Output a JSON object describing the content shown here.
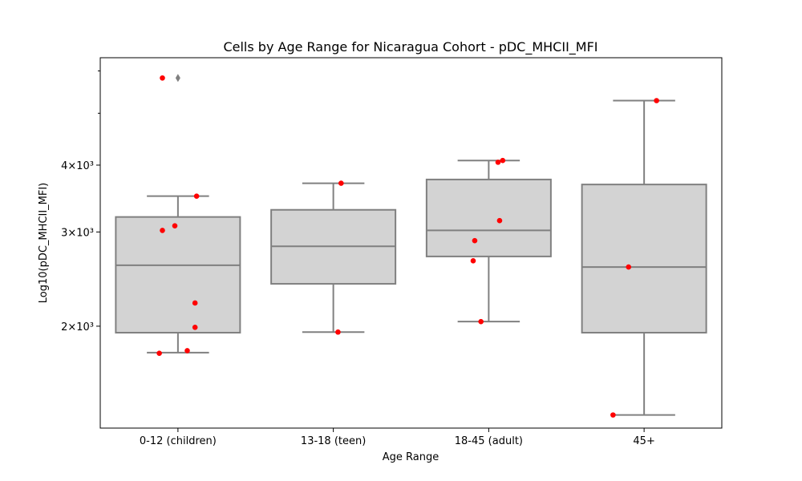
{
  "chart_data": {
    "type": "box",
    "title": "Cells by Age Range for Nicaragua Cohort - pDC_MHCII_MFI",
    "xlabel": "Age Range",
    "ylabel": "Log10(pDC_MHCII_MFI)",
    "y_scale": "log",
    "ylim": [
      1290,
      6350
    ],
    "y_ticks": [
      {
        "value": 2000,
        "label": "2×10³"
      },
      {
        "value": 3000,
        "label": "3×10³"
      },
      {
        "value": 4000,
        "label": "4×10³"
      }
    ],
    "y_minor_ticks": [
      5000,
      6000
    ],
    "categories": [
      "0-12 (children)",
      "13-18 (teen)",
      "18-45 (adult)",
      "45+"
    ],
    "colors": {
      "box_fill": "#d3d3d3",
      "box_edge": "#808080",
      "points": "#ff0000",
      "outlier": "#808080"
    },
    "boxes": [
      {
        "category": "0-12 (children)",
        "whisker_low": 1785,
        "q1": 1945,
        "median": 2600,
        "q3": 3200,
        "whisker_high": 3500,
        "outliers": [
          5820
        ]
      },
      {
        "category": "13-18 (teen)",
        "whisker_low": 1950,
        "q1": 2400,
        "median": 2820,
        "q3": 3300,
        "whisker_high": 3700,
        "outliers": []
      },
      {
        "category": "18-45 (adult)",
        "whisker_low": 2040,
        "q1": 2700,
        "median": 3020,
        "q3": 3760,
        "whisker_high": 4080,
        "outliers": []
      },
      {
        "category": "45+",
        "whisker_low": 1365,
        "q1": 1945,
        "median": 2580,
        "q3": 3680,
        "whisker_high": 5280,
        "outliers": []
      }
    ],
    "points": [
      {
        "category": "0-12 (children)",
        "jitter": -0.1,
        "value": 5820
      },
      {
        "category": "0-12 (children)",
        "jitter": 0.12,
        "value": 3500
      },
      {
        "category": "0-12 (children)",
        "jitter": -0.1,
        "value": 3020
      },
      {
        "category": "0-12 (children)",
        "jitter": -0.02,
        "value": 3080
      },
      {
        "category": "0-12 (children)",
        "jitter": 0.11,
        "value": 2210
      },
      {
        "category": "0-12 (children)",
        "jitter": 0.11,
        "value": 1990
      },
      {
        "category": "0-12 (children)",
        "jitter": 0.06,
        "value": 1800
      },
      {
        "category": "0-12 (children)",
        "jitter": -0.12,
        "value": 1780
      },
      {
        "category": "13-18 (teen)",
        "jitter": 0.05,
        "value": 3700
      },
      {
        "category": "13-18 (teen)",
        "jitter": 0.03,
        "value": 1950
      },
      {
        "category": "18-45 (adult)",
        "jitter": 0.09,
        "value": 4080
      },
      {
        "category": "18-45 (adult)",
        "jitter": 0.06,
        "value": 4050
      },
      {
        "category": "18-45 (adult)",
        "jitter": 0.07,
        "value": 3150
      },
      {
        "category": "18-45 (adult)",
        "jitter": -0.09,
        "value": 2890
      },
      {
        "category": "18-45 (adult)",
        "jitter": -0.1,
        "value": 2650
      },
      {
        "category": "18-45 (adult)",
        "jitter": -0.05,
        "value": 2040
      },
      {
        "category": "45+",
        "jitter": 0.08,
        "value": 5280
      },
      {
        "category": "45+",
        "jitter": -0.1,
        "value": 2580
      },
      {
        "category": "45+",
        "jitter": -0.2,
        "value": 1365
      }
    ]
  }
}
